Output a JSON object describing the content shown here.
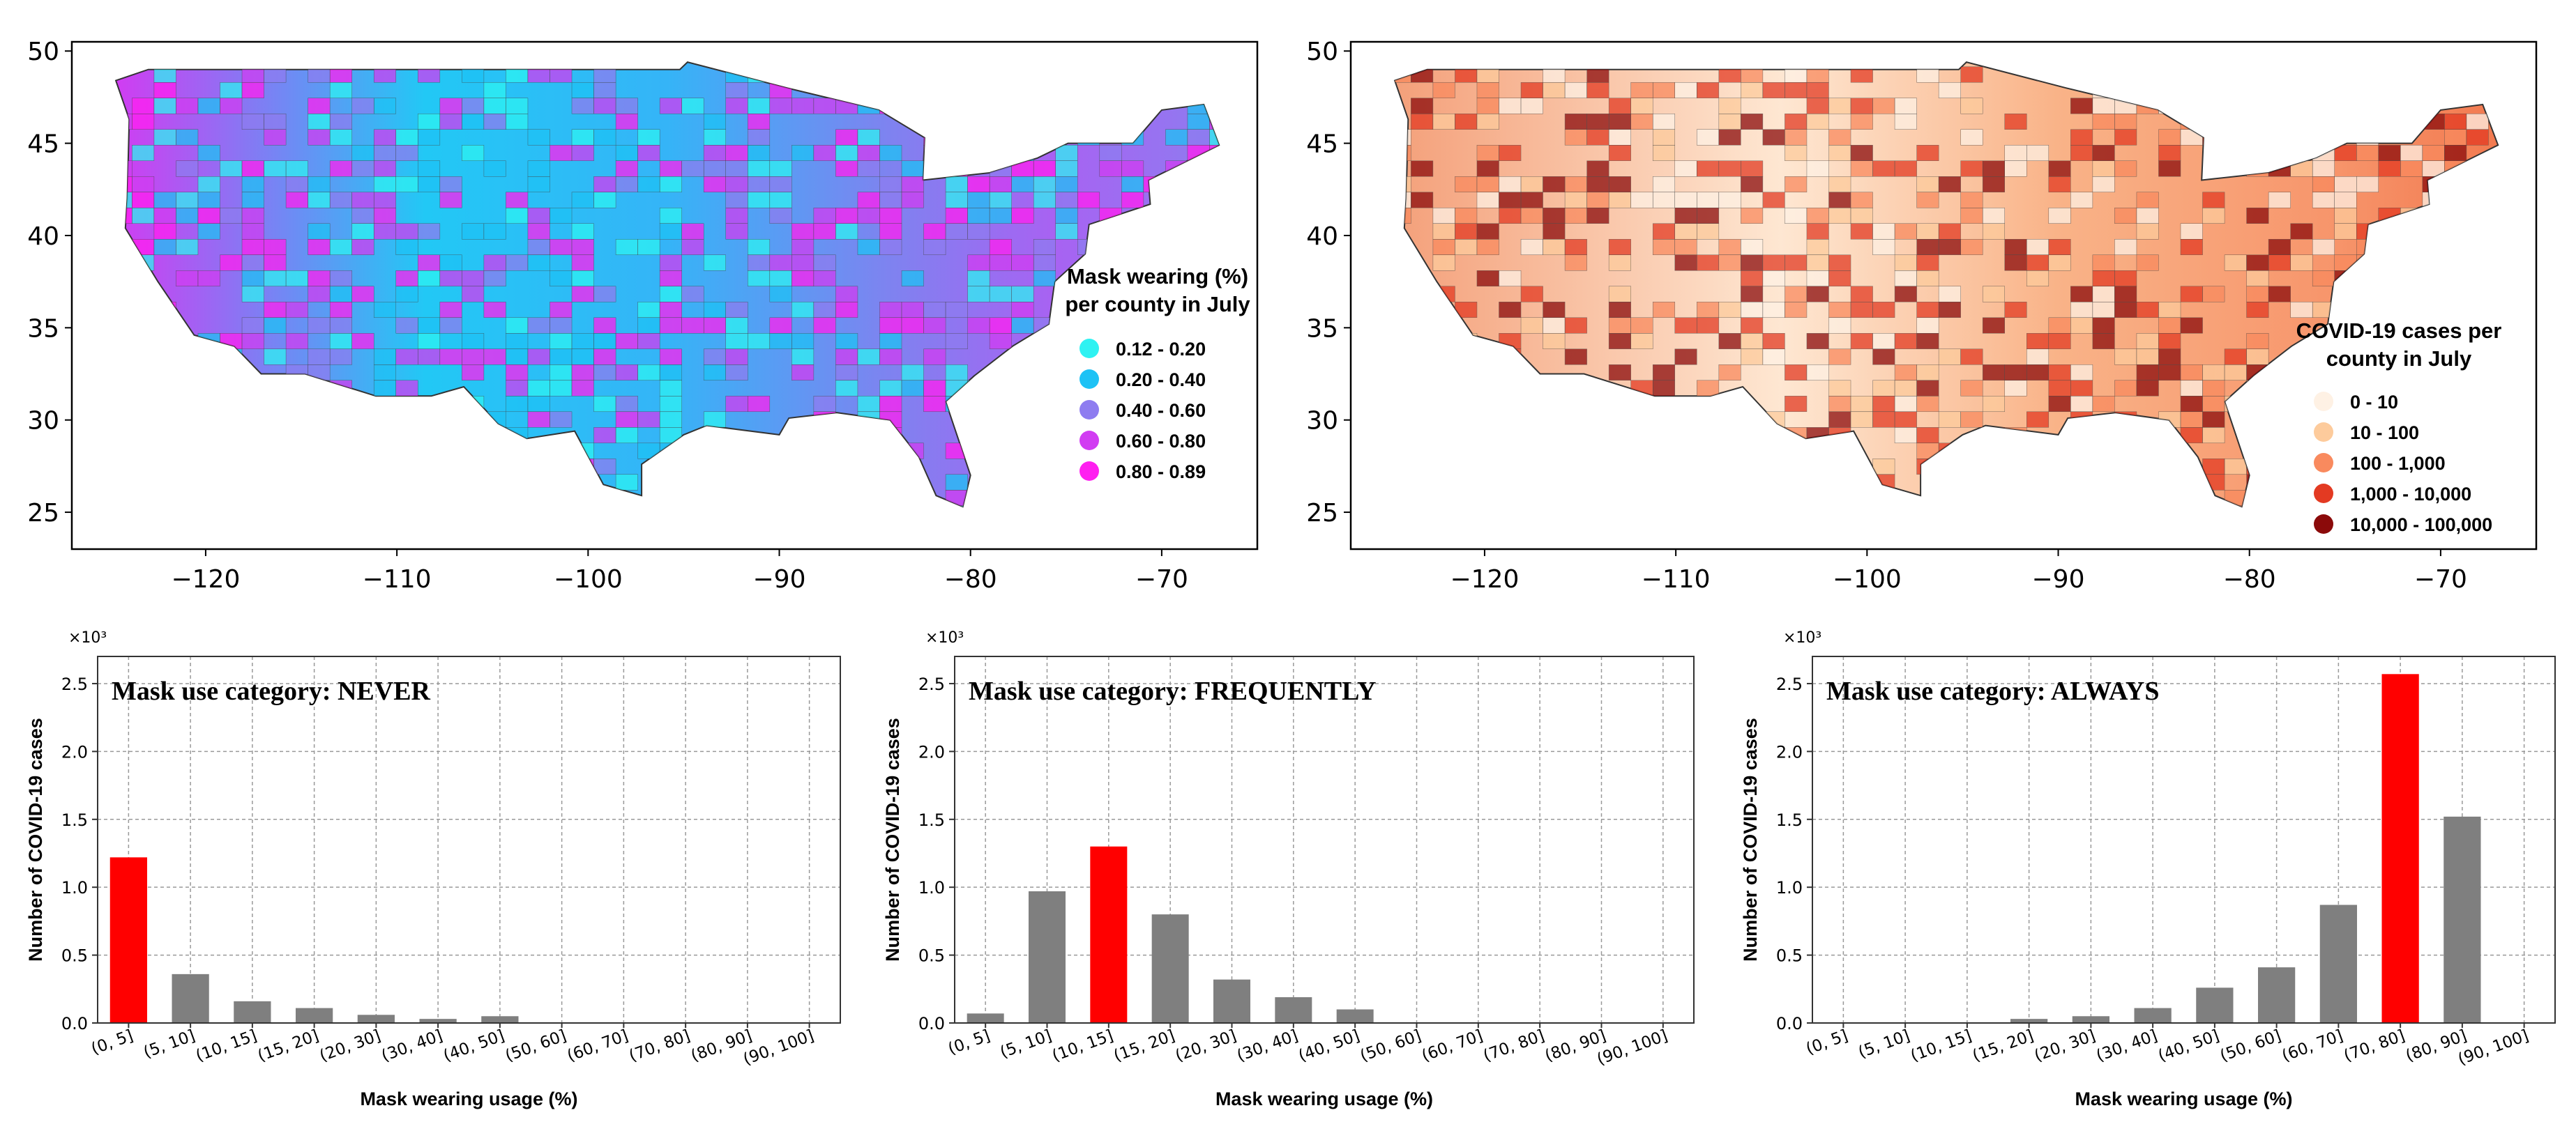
{
  "chart_data": [
    {
      "type": "choropleth",
      "legend_title": [
        "Mask wearing (%)",
        "per county in July"
      ],
      "legend": [
        {
          "label": "0.12 - 0.20",
          "color": "#2EF2F2"
        },
        {
          "label": "0.20 - 0.40",
          "color": "#1EC2F5"
        },
        {
          "label": "0.40 - 0.60",
          "color": "#8E7CF0"
        },
        {
          "label": "0.60 - 0.80",
          "color": "#D13CF2"
        },
        {
          "label": "0.80 - 0.89",
          "color": "#FF1FF0"
        }
      ],
      "xticks": [
        "−120",
        "−110",
        "−100",
        "−90",
        "−80",
        "−70"
      ],
      "yticks": [
        "50",
        "45",
        "40",
        "35",
        "30",
        "25"
      ],
      "xlim": [
        -127,
        -65
      ],
      "ylim": [
        23,
        50.5
      ],
      "grid": false,
      "legend_position": "right"
    },
    {
      "type": "choropleth",
      "legend_title": [
        "COVID-19 cases per",
        "county in July"
      ],
      "legend": [
        {
          "label": "0 - 10",
          "color": "#FEF1E4"
        },
        {
          "label": "10 - 100",
          "color": "#FDCB9C"
        },
        {
          "label": "100 - 1,000",
          "color": "#F98A5E"
        },
        {
          "label": "1,000 - 10,000",
          "color": "#E33A22"
        },
        {
          "label": "10,000 - 100,000",
          "color": "#8B0A0A"
        }
      ],
      "xticks": [
        "−120",
        "−110",
        "−100",
        "−90",
        "−80",
        "−70"
      ],
      "yticks": [
        "50",
        "45",
        "40",
        "35",
        "30",
        "25"
      ],
      "xlim": [
        -127,
        -65
      ],
      "ylim": [
        23,
        50.5
      ],
      "grid": false,
      "legend_position": "bottom-right"
    },
    {
      "type": "bar",
      "title": "Mask use category: NEVER",
      "categories": [
        "(0, 5]",
        "(5, 10]",
        "(10, 15]",
        "(15, 20]",
        "(20, 30]",
        "(30, 40]",
        "(40, 50]",
        "(50, 60]",
        "(60, 70]",
        "(70, 80]",
        "(80, 90]",
        "(90, 100]"
      ],
      "values": [
        1.22,
        0.36,
        0.16,
        0.11,
        0.06,
        0.03,
        0.05,
        0,
        0,
        0,
        0,
        0
      ],
      "highlight_index": 0,
      "ylim": [
        0,
        2.7
      ],
      "yticks": [
        "0.0",
        "0.5",
        "1.0",
        "1.5",
        "2.0",
        "2.5"
      ],
      "multiplier": "×10³",
      "xlabel": "Mask wearing usage (%)",
      "ylabel": "Number of COVID-19 cases",
      "grid": true
    },
    {
      "type": "bar",
      "title": "Mask use category: FREQUENTLY",
      "categories": [
        "(0, 5]",
        "(5, 10]",
        "(10, 15]",
        "(15, 20]",
        "(20, 30]",
        "(30, 40]",
        "(40, 50]",
        "(50, 60]",
        "(60, 70]",
        "(70, 80]",
        "(80, 90]",
        "(90, 100]"
      ],
      "values": [
        0.07,
        0.97,
        1.3,
        0.8,
        0.32,
        0.19,
        0.1,
        0,
        0,
        0,
        0,
        0
      ],
      "highlight_index": 2,
      "ylim": [
        0,
        2.7
      ],
      "yticks": [
        "0.0",
        "0.5",
        "1.0",
        "1.5",
        "2.0",
        "2.5"
      ],
      "multiplier": "×10³",
      "xlabel": "Mask wearing usage (%)",
      "ylabel": "Number of COVID-19 cases",
      "grid": true
    },
    {
      "type": "bar",
      "title": "Mask use category: ALWAYS",
      "categories": [
        "(0, 5]",
        "(5, 10]",
        "(10, 15]",
        "(15, 20]",
        "(20, 30]",
        "(30, 40]",
        "(40, 50]",
        "(50, 60]",
        "(60, 70]",
        "(70, 80]",
        "(80, 90]",
        "(90, 100]"
      ],
      "values": [
        0,
        0,
        0,
        0.03,
        0.05,
        0.11,
        0.26,
        0.41,
        0.87,
        2.57,
        1.52,
        0
      ],
      "highlight_index": 9,
      "ylim": [
        0,
        2.7
      ],
      "yticks": [
        "0.0",
        "0.5",
        "1.0",
        "1.5",
        "2.0",
        "2.5"
      ],
      "multiplier": "×10³",
      "xlabel": "Mask wearing usage (%)",
      "ylabel": "Number of COVID-19 cases",
      "grid": true
    }
  ],
  "colors": {
    "bar_default": "#7F7F7F",
    "bar_highlight": "#FF0000",
    "map_background": "#FFFFFF"
  }
}
